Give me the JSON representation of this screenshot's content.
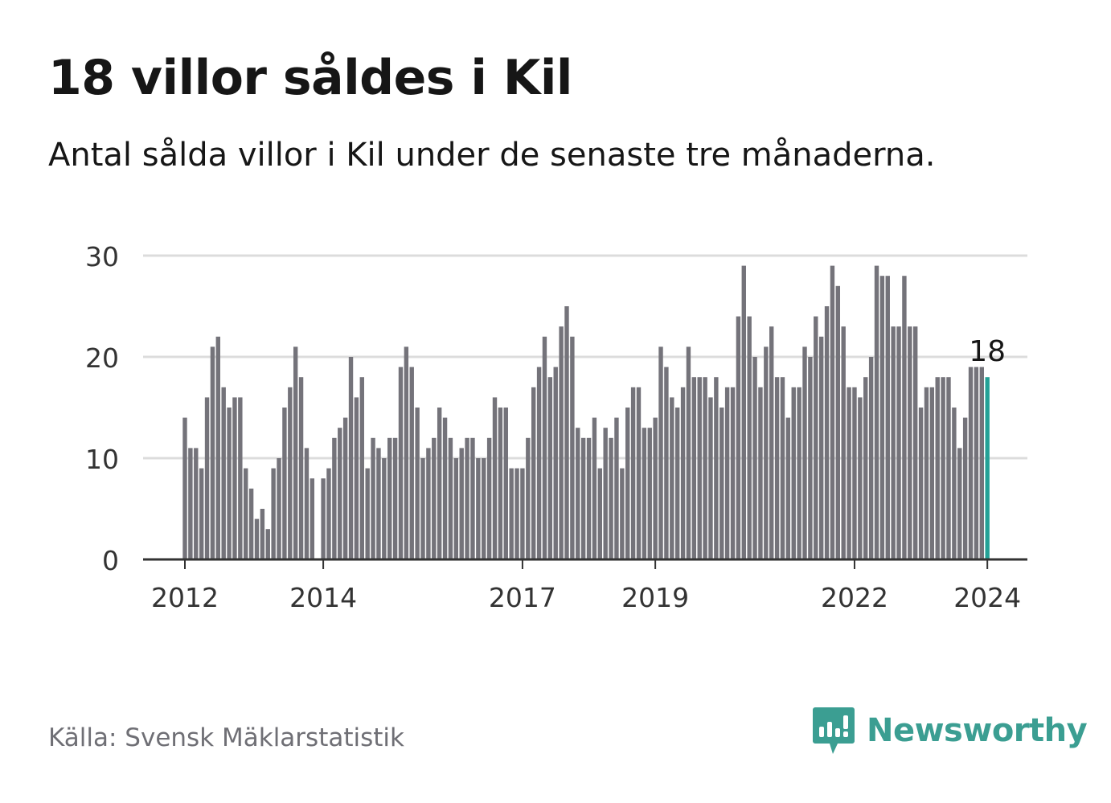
{
  "title": "18 villor såldes i Kil",
  "subtitle": "Antal sålda villor i Kil under de senaste tre månaderna.",
  "source": "Källa: Svensk Mäklarstatistik",
  "brand": {
    "name": "Newsworthy",
    "icon": "newsworthy-chart-icon",
    "color": "#3b9e92"
  },
  "colors": {
    "bar": "#74737a",
    "highlight": "#23a196",
    "grid": "#dcdcdc",
    "axis": "#333333",
    "text": "#161616"
  },
  "chart_data": {
    "type": "bar",
    "title": "18 villor såldes i Kil",
    "subtitle": "Antal sålda villor i Kil under de senaste tre månaderna.",
    "xlabel": "",
    "ylabel": "",
    "ylim": [
      0,
      30
    ],
    "y_ticks": [
      0,
      10,
      20,
      30
    ],
    "x_tick_labels": [
      {
        "label": "2012",
        "index": 0
      },
      {
        "label": "2014",
        "index": 25
      },
      {
        "label": "2017",
        "index": 61
      },
      {
        "label": "2019",
        "index": 85
      },
      {
        "label": "2022",
        "index": 121
      },
      {
        "label": "2024",
        "index": 145
      }
    ],
    "grid": true,
    "highlight_index": 145,
    "highlight_label": "18",
    "values": [
      14,
      11,
      11,
      9,
      16,
      21,
      22,
      17,
      15,
      16,
      16,
      9,
      7,
      4,
      5,
      3,
      9,
      10,
      15,
      17,
      21,
      18,
      11,
      8,
      0,
      8,
      9,
      12,
      13,
      14,
      20,
      16,
      18,
      9,
      12,
      11,
      10,
      12,
      12,
      19,
      21,
      19,
      15,
      10,
      11,
      12,
      15,
      14,
      12,
      10,
      11,
      12,
      12,
      10,
      10,
      12,
      16,
      15,
      15,
      9,
      9,
      9,
      12,
      17,
      19,
      22,
      18,
      19,
      23,
      25,
      22,
      13,
      12,
      12,
      14,
      9,
      13,
      12,
      14,
      9,
      15,
      17,
      17,
      13,
      13,
      14,
      21,
      19,
      16,
      15,
      17,
      21,
      18,
      18,
      18,
      16,
      18,
      15,
      17,
      17,
      24,
      29,
      24,
      20,
      17,
      21,
      23,
      18,
      18,
      14,
      17,
      17,
      21,
      20,
      24,
      22,
      25,
      29,
      27,
      23,
      17,
      17,
      16,
      18,
      20,
      29,
      28,
      28,
      23,
      23,
      28,
      23,
      23,
      15,
      17,
      17,
      18,
      18,
      18,
      15,
      11,
      14,
      19,
      19,
      19,
      18
    ]
  }
}
